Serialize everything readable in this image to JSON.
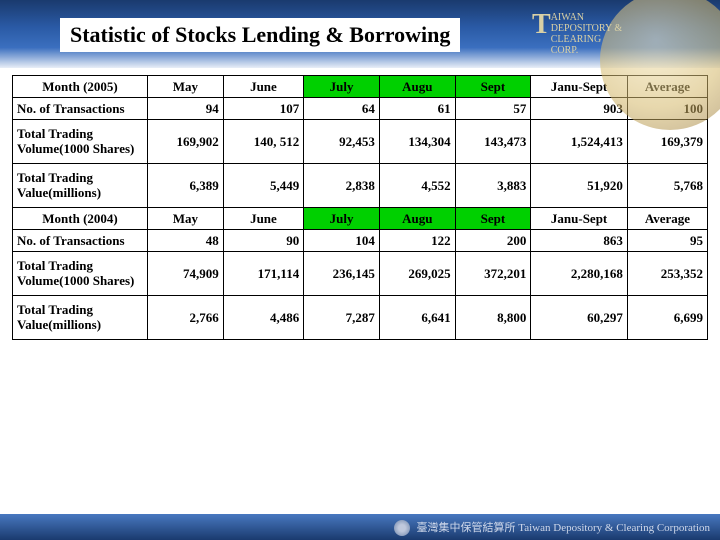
{
  "title": "Statistic of Stocks Lending & Borrowing",
  "logo": {
    "name": "AIWAN",
    "line2": "EPOSITORY &",
    "line3": "LEARING",
    "line4": "ORP."
  },
  "columns": {
    "c1": "May",
    "c2": "June",
    "c3": "July",
    "c4": "Augu",
    "c5": "Sept",
    "c6": "Janu-Sept",
    "c7": "Average"
  },
  "highlight_color": "#00d000",
  "block2005": {
    "header": "Month (2005)",
    "rows": {
      "r1": {
        "label": "No. of Transactions",
        "v": [
          "94",
          "107",
          "64",
          "61",
          "57",
          "903",
          "100"
        ]
      },
      "r2": {
        "label": "Total Trading Volume(1000 Shares)",
        "v": [
          "169,902",
          "140, 512",
          "92,453",
          "134,304",
          "143,473",
          "1,524,413",
          "169,379"
        ]
      },
      "r3": {
        "label": "Total Trading Value(millions)",
        "v": [
          "6,389",
          "5,449",
          "2,838",
          "4,552",
          "3,883",
          "51,920",
          "5,768"
        ]
      }
    }
  },
  "block2004": {
    "header": "Month (2004)",
    "rows": {
      "r1": {
        "label": "No. of Transactions",
        "v": [
          "48",
          "90",
          "104",
          "122",
          "200",
          "863",
          "95"
        ]
      },
      "r2": {
        "label": "Total Trading Volume(1000 Shares)",
        "v": [
          "74,909",
          "171,114",
          "236,145",
          "269,025",
          "372,201",
          "2,280,168",
          "253,352"
        ]
      },
      "r3": {
        "label": "Total Trading Value(millions)",
        "v": [
          "2,766",
          "4,486",
          "7,287",
          "6,641",
          "8,800",
          "60,297",
          "6,699"
        ]
      }
    }
  },
  "footer": {
    "org_zh": "臺灣集中保管結算所",
    "org_en": "Taiwan Depository & Clearing Corporation"
  }
}
